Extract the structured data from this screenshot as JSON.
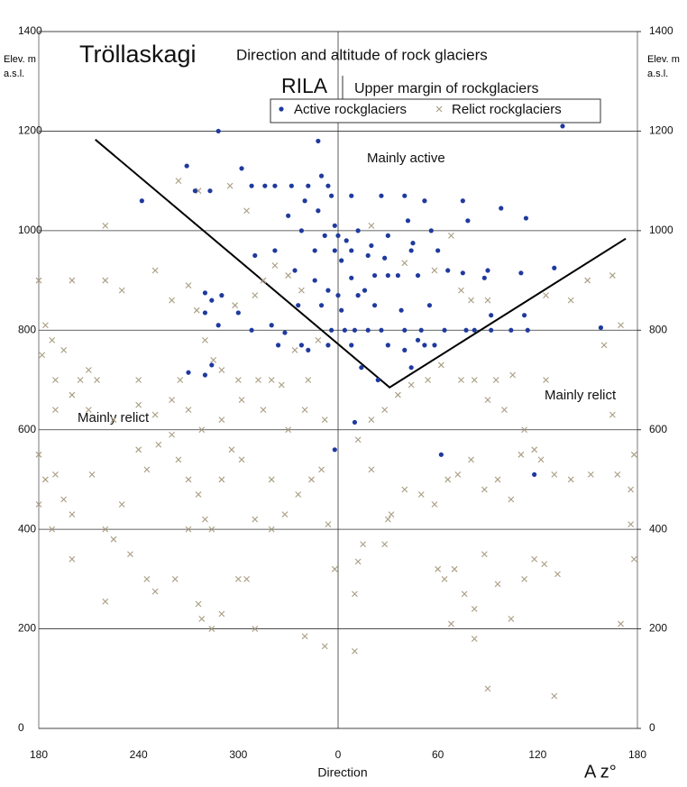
{
  "chart_data": {
    "type": "scatter",
    "brand": "Tröllaskagi",
    "title": "Direction and altitude of rock glaciers",
    "y_label": "Elev. m a.s.l.",
    "y2_label": "Elev. m a.s.l.",
    "x_label": "Direction",
    "x_unit_label": "A z°",
    "annotations": [
      "Mainly active",
      "Mainly relict",
      "Mainly relict"
    ],
    "margin_line": {
      "label": "RILA",
      "name": "Upper margin of rockglaciers",
      "color": "#000000",
      "x": [
        -146,
        31,
        173
      ],
      "values": [
        1183,
        685,
        984
      ]
    },
    "xlim": [
      -180,
      180
    ],
    "xticks": [
      {
        "value": -180,
        "label": "180"
      },
      {
        "value": -120,
        "label": "240"
      },
      {
        "value": -60,
        "label": "300"
      },
      0,
      60,
      120,
      {
        "value": 180,
        "label": "180"
      }
    ],
    "ylim": [
      0,
      1400
    ],
    "yticks": [
      0,
      200,
      400,
      600,
      800,
      1000,
      1200,
      1400
    ],
    "y2lim": [
      0,
      1400
    ],
    "y2ticks": [
      0,
      200,
      400,
      600,
      800,
      1000,
      1200,
      1400
    ],
    "grid": true,
    "legend": "top",
    "series": [
      {
        "name": "Active rockglaciers",
        "color": "#1f3a9e",
        "marker": "dot",
        "x": [
          -72,
          -12,
          135,
          -91,
          -58,
          -118,
          -86,
          -77,
          -52,
          -44,
          -38,
          -28,
          -18,
          -10,
          -6,
          -4,
          8,
          26,
          40,
          52,
          75,
          98,
          113,
          -20,
          -12,
          -30,
          -2,
          -22,
          -8,
          0,
          5,
          12,
          20,
          30,
          42,
          56,
          78,
          60,
          45,
          -38,
          -50,
          -14,
          -2,
          8,
          18,
          28,
          2,
          -26,
          -14,
          -6,
          8,
          16,
          22,
          30,
          36,
          48,
          44,
          66,
          75,
          90,
          110,
          130,
          -70,
          -80,
          -76,
          -80,
          -72,
          -60,
          -52,
          -40,
          -32,
          -24,
          -10,
          0,
          12,
          2,
          22,
          38,
          55,
          -4,
          4,
          10,
          18,
          26,
          40,
          50,
          64,
          77,
          82,
          92,
          104,
          114,
          158,
          -6,
          8,
          30,
          40,
          48,
          52,
          58,
          -22,
          -18,
          -36,
          -76,
          -80,
          -90,
          14,
          44,
          24,
          -2,
          10,
          62,
          118,
          112,
          92,
          88
        ],
        "values": [
          1200,
          1180,
          1210,
          1130,
          1125,
          1060,
          1080,
          1080,
          1090,
          1090,
          1090,
          1090,
          1090,
          1110,
          1090,
          1070,
          1070,
          1070,
          1070,
          1060,
          1060,
          1045,
          1025,
          1060,
          1040,
          1030,
          1010,
          1000,
          990,
          990,
          980,
          1000,
          970,
          990,
          1020,
          1000,
          1020,
          960,
          975,
          960,
          950,
          960,
          960,
          960,
          950,
          945,
          940,
          920,
          900,
          880,
          905,
          880,
          910,
          910,
          910,
          910,
          960,
          920,
          915,
          920,
          915,
          925,
          870,
          875,
          860,
          835,
          810,
          835,
          800,
          810,
          795,
          850,
          850,
          870,
          870,
          840,
          850,
          840,
          850,
          800,
          800,
          800,
          800,
          800,
          800,
          800,
          800,
          800,
          800,
          800,
          800,
          800,
          805,
          770,
          770,
          770,
          760,
          780,
          770,
          770,
          770,
          760,
          770,
          730,
          710,
          715,
          725,
          725,
          700,
          560,
          615,
          550,
          510,
          830,
          830,
          905
        ]
      },
      {
        "name": "Relict rockglaciers",
        "color": "#a89c80",
        "marker": "cross",
        "x": [
          -180,
          -176,
          -172,
          -178,
          -170,
          -160,
          -165,
          -150,
          -145,
          -155,
          -140,
          -130,
          -120,
          -110,
          -100,
          -95,
          -90,
          -85,
          -80,
          -75,
          -70,
          -62,
          -50,
          -45,
          -38,
          -30,
          -22,
          -60,
          -48,
          -40,
          -34,
          -18,
          -12,
          -26,
          -140,
          -96,
          -84,
          -65,
          -55,
          -170,
          -160,
          -150,
          -135,
          -120,
          -110,
          -100,
          -90,
          -82,
          -70,
          -58,
          -45,
          -30,
          -20,
          -8,
          -180,
          -176,
          -170,
          -165,
          -180,
          -172,
          -160,
          -148,
          -140,
          -135,
          -130,
          -120,
          -115,
          -108,
          -100,
          -96,
          -90,
          -84,
          -80,
          -76,
          -70,
          -64,
          -58,
          -50,
          -40,
          -32,
          -24,
          -16,
          -10,
          -6,
          -160,
          -140,
          -125,
          -115,
          -110,
          -98,
          -90,
          -84,
          -82,
          -76,
          -70,
          -60,
          -55,
          -40,
          -50,
          -20,
          -8,
          -2,
          15,
          10,
          12,
          28,
          10,
          30,
          40,
          50,
          58,
          66,
          72,
          80,
          88,
          96,
          104,
          110,
          122,
          130,
          140,
          152,
          168,
          178,
          176,
          176,
          178,
          170,
          165,
          160,
          170,
          165,
          150,
          140,
          125,
          105,
          95,
          90,
          82,
          74,
          62,
          54,
          44,
          36,
          28,
          20,
          12,
          20,
          32,
          64,
          70,
          76,
          82,
          88,
          96,
          104,
          112,
          118,
          124,
          132,
          68,
          82,
          90,
          130,
          60,
          100,
          112,
          118,
          125,
          80,
          74,
          90,
          68,
          58,
          20,
          40
        ],
        "values": [
          900,
          810,
          780,
          750,
          700,
          900,
          760,
          720,
          700,
          700,
          900,
          880,
          700,
          920,
          860,
          700,
          890,
          840,
          780,
          740,
          720,
          850,
          870,
          900,
          930,
          910,
          880,
          700,
          700,
          700,
          690,
          700,
          780,
          760,
          1010,
          1100,
          1080,
          1090,
          1040,
          640,
          670,
          640,
          620,
          650,
          630,
          660,
          640,
          600,
          620,
          660,
          640,
          600,
          640,
          620,
          550,
          500,
          510,
          460,
          450,
          400,
          430,
          510,
          400,
          380,
          450,
          560,
          520,
          570,
          590,
          540,
          500,
          470,
          420,
          400,
          500,
          560,
          540,
          420,
          500,
          430,
          470,
          500,
          520,
          410,
          340,
          255,
          350,
          300,
          275,
          300,
          400,
          250,
          220,
          200,
          230,
          300,
          300,
          400,
          200,
          185,
          165,
          320,
          370,
          270,
          335,
          370,
          155,
          420,
          480,
          470,
          450,
          500,
          510,
          540,
          480,
          500,
          460,
          550,
          540,
          510,
          500,
          510,
          510,
          550,
          480,
          410,
          340,
          210,
          630,
          770,
          810,
          910,
          900,
          860,
          870,
          710,
          700,
          660,
          700,
          700,
          730,
          700,
          690,
          670,
          640,
          620,
          580,
          520,
          430,
          300,
          320,
          270,
          240,
          350,
          290,
          220,
          300,
          340,
          330,
          310,
          210,
          180,
          80,
          65,
          320,
          640,
          600,
          560,
          700,
          860,
          880,
          860,
          990,
          920,
          1010,
          935
        ]
      }
    ]
  }
}
